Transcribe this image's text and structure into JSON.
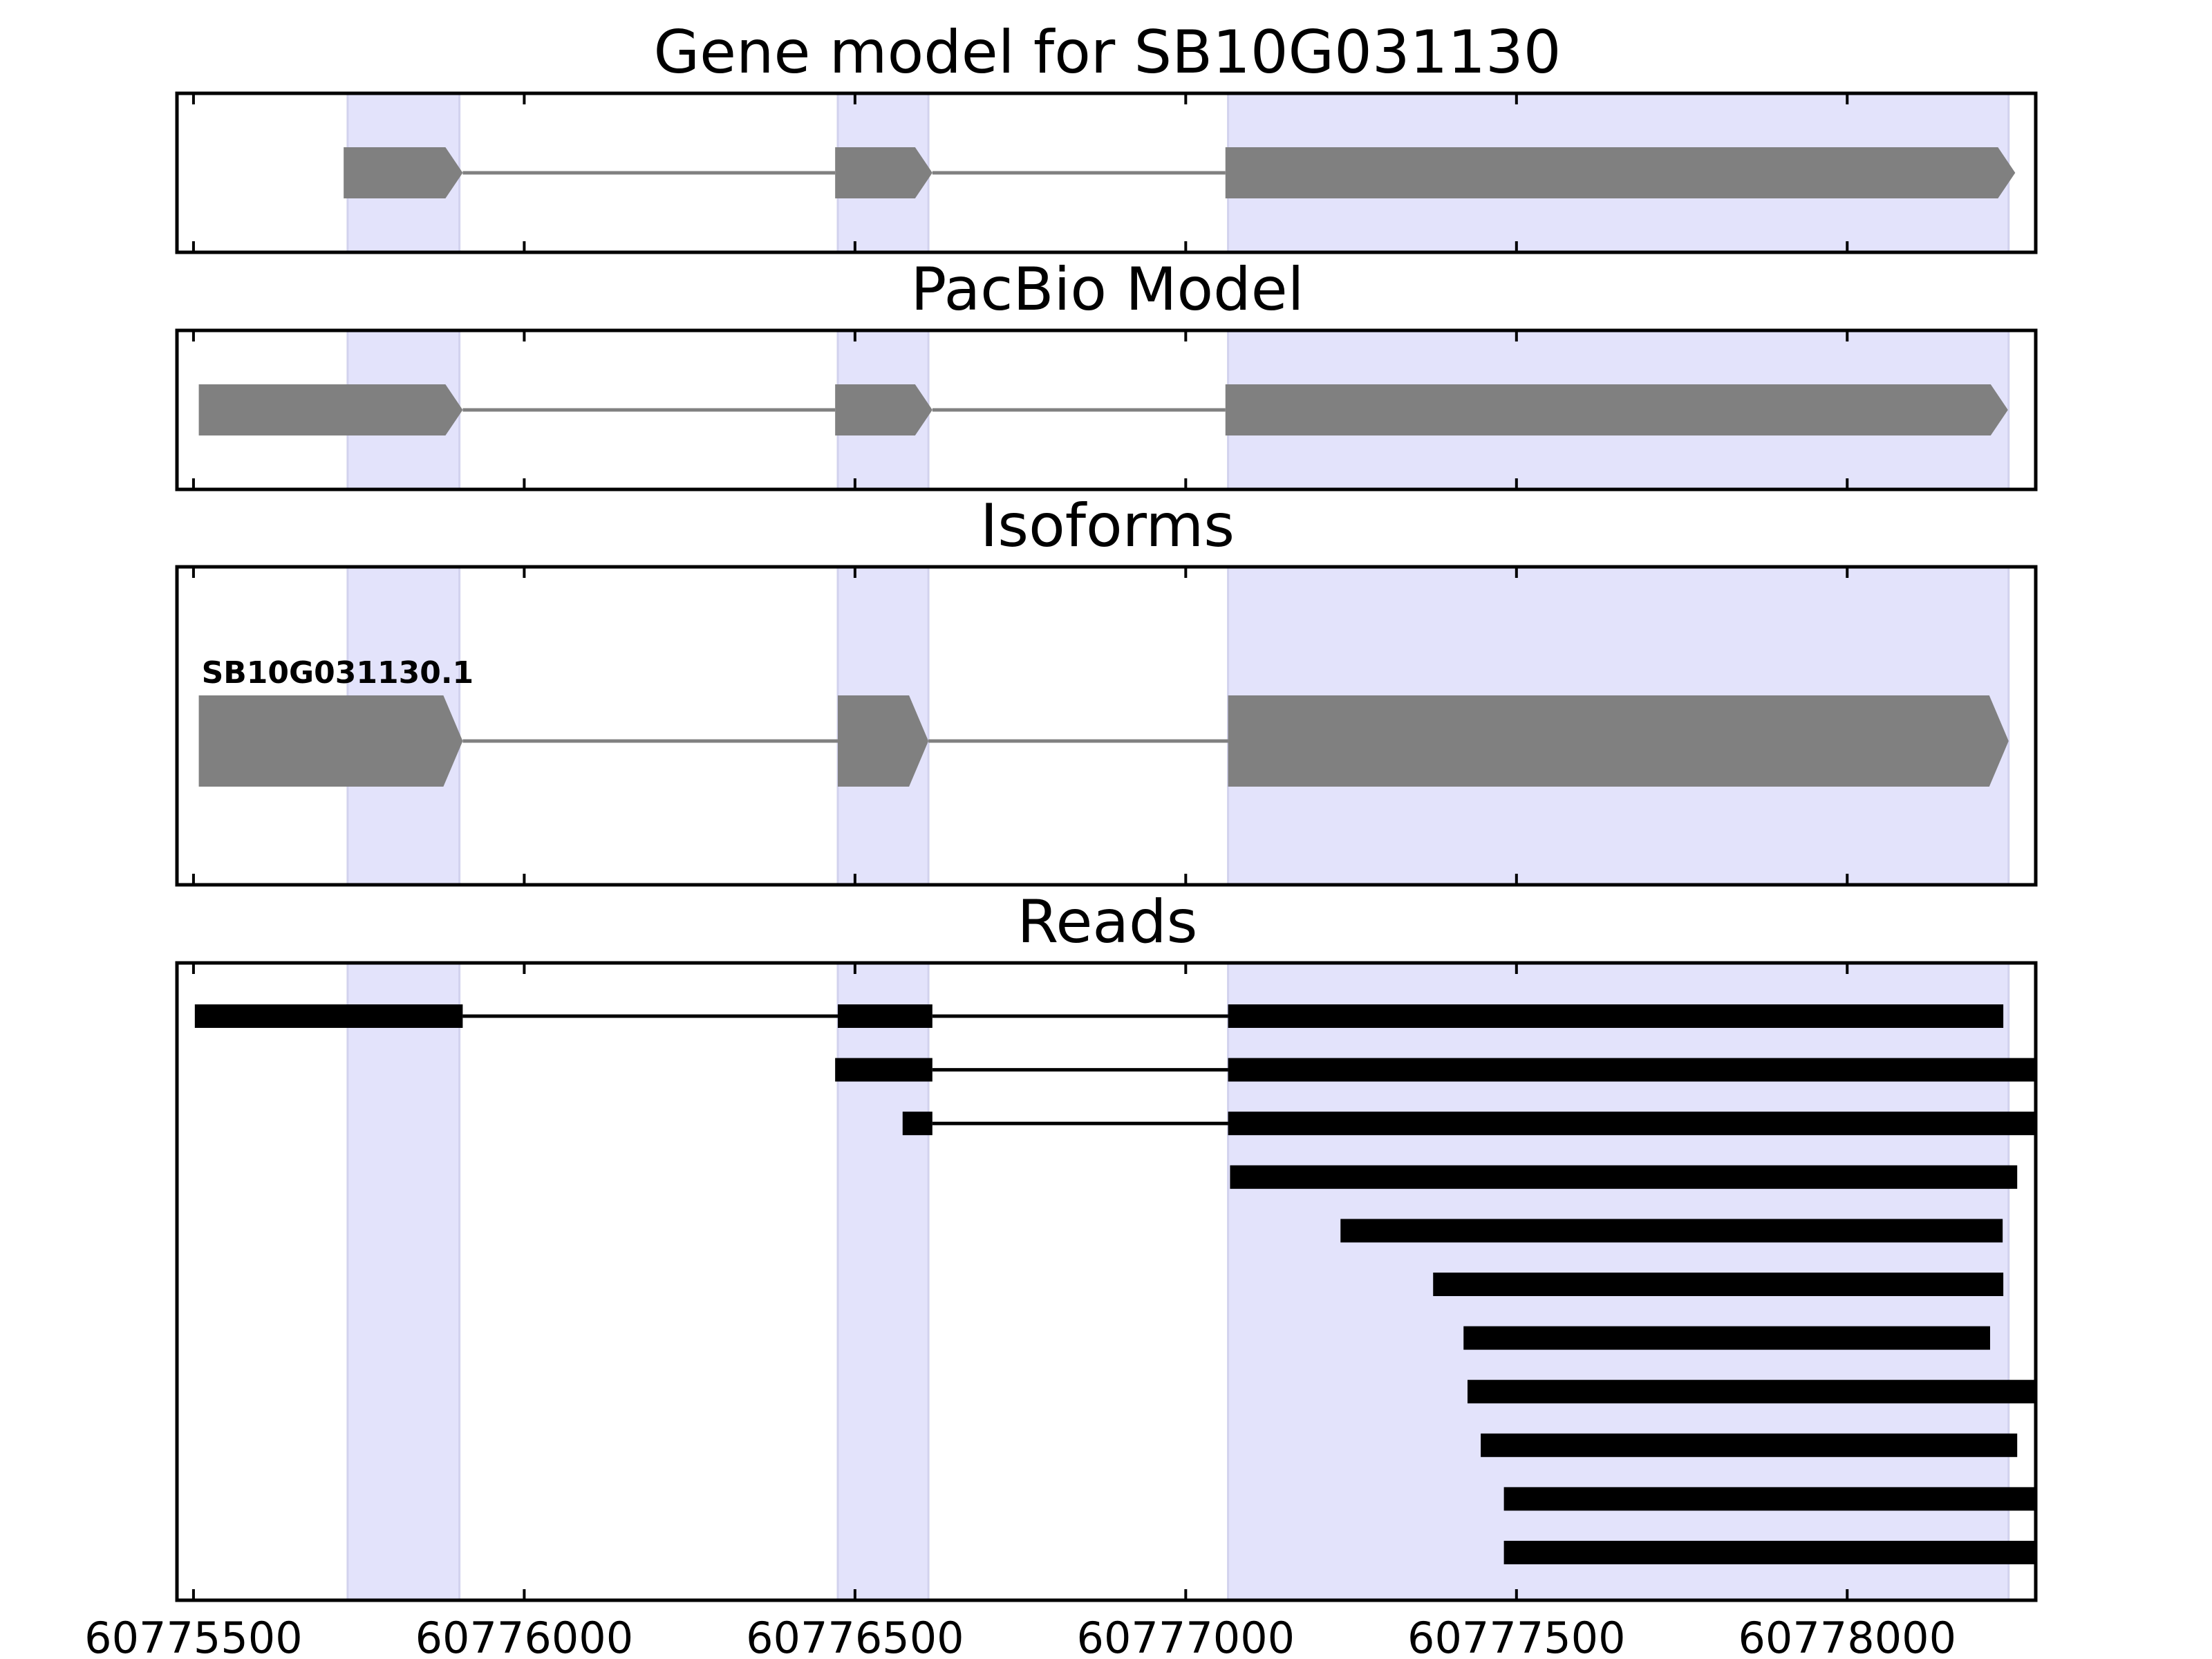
{
  "chart_data": {
    "type": "gene-track",
    "title": "Gene model for SB10G031130",
    "xlim": [
      60775475,
      60778285
    ],
    "xticks": [
      60775500,
      60776000,
      60776500,
      60777000,
      60777500,
      60778000
    ],
    "xtick_labels": [
      "60775500",
      "60776000",
      "60776500",
      "60777000",
      "60777500",
      "60778000"
    ],
    "highlight_color": "#e3e3fb",
    "highlight_edge_color": "#d2d2ee",
    "exon_color": "#808080",
    "intron_color": "#808080",
    "read_color": "#000000",
    "highlight_regions": [
      [
        60775733,
        60775902
      ],
      [
        60776474,
        60776611
      ],
      [
        60777064,
        60778244
      ]
    ],
    "panels": [
      {
        "key": "gene_model",
        "title": "Gene model for SB10G031130",
        "strand": "+",
        "transcripts": [
          {
            "label": "",
            "exons": [
              [
                60775727,
                60775907
              ],
              [
                60776470,
                60776617
              ],
              [
                60777060,
                60778254
              ]
            ]
          }
        ]
      },
      {
        "key": "pacbio",
        "title": "PacBio Model",
        "strand": "+",
        "transcripts": [
          {
            "label": "",
            "exons": [
              [
                60775508,
                60775907
              ],
              [
                60776470,
                60776617
              ],
              [
                60777060,
                60778243
              ]
            ]
          }
        ]
      },
      {
        "key": "isoforms",
        "title": "Isoforms",
        "strand": "+",
        "transcripts": [
          {
            "label": "SB10G031130.1",
            "exons": [
              [
                60775508,
                60775907
              ],
              [
                60776474,
                60776611
              ],
              [
                60777064,
                60778244
              ]
            ]
          }
        ]
      },
      {
        "key": "reads",
        "title": "Reads",
        "reads": [
          [
            [
              60775502,
              60775907
            ],
            [
              60776474,
              60776617
            ],
            [
              60777064,
              60778236
            ]
          ],
          [
            [
              60776470,
              60776617
            ],
            [
              60777064,
              60778285
            ]
          ],
          [
            [
              60776572,
              60776617
            ],
            [
              60777064,
              60778285
            ]
          ],
          [
            [
              60777067,
              60778257
            ]
          ],
          [
            [
              60777234,
              60778235
            ]
          ],
          [
            [
              60777374,
              60778236
            ]
          ],
          [
            [
              60777420,
              60778216
            ]
          ],
          [
            [
              60777426,
              60778285
            ]
          ],
          [
            [
              60777446,
              60778257
            ]
          ],
          [
            [
              60777481,
              60778285
            ]
          ],
          [
            [
              60777481,
              60778285
            ]
          ]
        ]
      }
    ]
  }
}
